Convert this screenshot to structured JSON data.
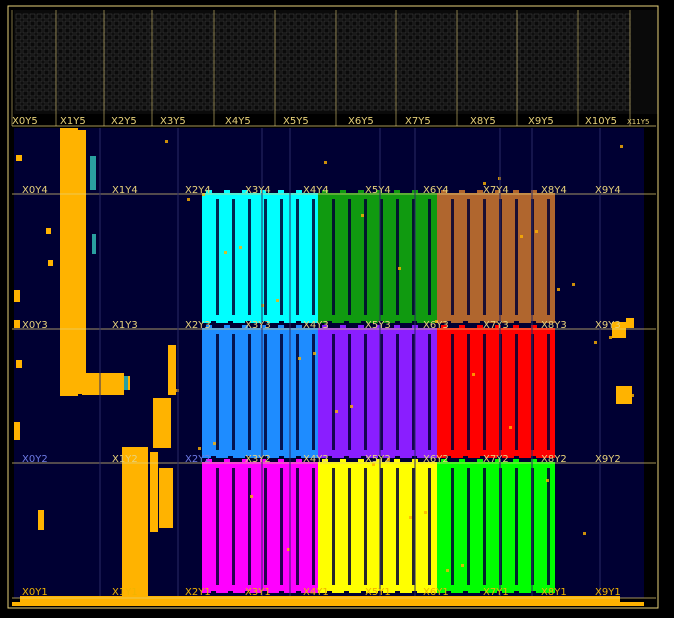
{
  "view": {
    "title": "Device view",
    "background": "#000000",
    "fabric_color": "#000033",
    "grid_color": "#E8D27A",
    "label_color": "#E8D27A",
    "bottom_label_color": "#F0B400",
    "selected_row_label_color": "#6E7BE6",
    "io_bank_color": "#9A9A9A"
  },
  "top_row": {
    "labels": [
      "X0Y5",
      "X1Y5",
      "X2Y5",
      "X3Y5",
      "X4Y5",
      "X5Y5",
      "X6Y5",
      "X7Y5",
      "X8Y5",
      "X9Y5",
      "X10Y5",
      "X11Y5"
    ]
  },
  "regions": [
    {
      "row": 4,
      "labels": [
        "X0Y4",
        "X1Y4",
        "X2Y4",
        "X3Y4",
        "X4Y4",
        "X5Y4",
        "X6Y4",
        "X7Y4",
        "X8Y4",
        "X9Y4"
      ]
    },
    {
      "row": 3,
      "labels": [
        "X0Y3",
        "X1Y3",
        "X2Y3",
        "X3Y3",
        "X4Y3",
        "X5Y3",
        "X6Y3",
        "X7Y3",
        "X8Y3",
        "X9Y3"
      ]
    },
    {
      "row": 2,
      "labels": [
        "X0Y2",
        "X1Y2",
        "X2Y2",
        "X3Y2",
        "X4Y2",
        "X5Y2",
        "X6Y2",
        "X7Y2",
        "X8Y2",
        "X9Y2"
      ]
    },
    {
      "row": 1,
      "labels": [
        "X0Y1",
        "X1Y1",
        "X2Y1",
        "X3Y1",
        "X4Y1",
        "X5Y1",
        "X6Y1",
        "X7Y1",
        "X8Y1",
        "X9Y1"
      ]
    }
  ],
  "pblocks": [
    {
      "name": "cyan-block",
      "color": "#00FFFF"
    },
    {
      "name": "green-block",
      "color": "#109A10"
    },
    {
      "name": "brown-block",
      "color": "#B0662E"
    },
    {
      "name": "blue-block",
      "color": "#1E8CFF"
    },
    {
      "name": "purple-block",
      "color": "#8A1EFF"
    },
    {
      "name": "red-block",
      "color": "#FF0000"
    },
    {
      "name": "magenta-block",
      "color": "#FF00FF"
    },
    {
      "name": "yellow-block",
      "color": "#FFFF00"
    },
    {
      "name": "lime-block",
      "color": "#00FF00"
    },
    {
      "name": "orange-logic",
      "color": "#FFB300"
    },
    {
      "name": "teal-logic",
      "color": "#2AA0A0"
    }
  ]
}
